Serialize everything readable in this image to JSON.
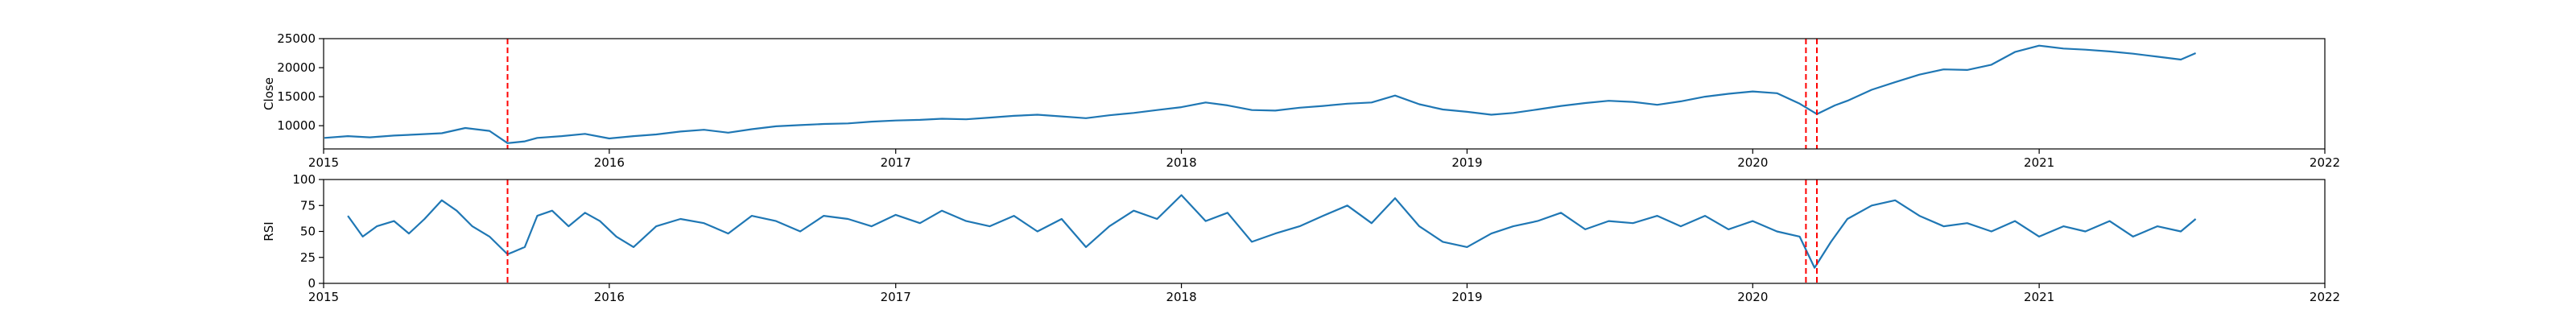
{
  "colors": {
    "series": "#1f77b4",
    "event_lines": "#ff0000",
    "frame": "#000000",
    "background": "#ffffff"
  },
  "chart_data": [
    {
      "type": "line",
      "ylabel": "Close",
      "xlim": [
        "2015-01-01",
        "2022-01-01"
      ],
      "ylim": [
        6000,
        25000
      ],
      "x_ticks": [
        "2015",
        "2016",
        "2017",
        "2018",
        "2019",
        "2020",
        "2021",
        "2022"
      ],
      "y_ticks": [
        10000,
        15000,
        20000,
        25000
      ],
      "grid": false,
      "event_lines": [
        "2015-08-24",
        "2020-03-09",
        "2020-03-23"
      ],
      "series": [
        {
          "x": [
            "2015-01-02",
            "2015-02-01",
            "2015-03-01",
            "2015-04-01",
            "2015-05-01",
            "2015-06-01",
            "2015-07-01",
            "2015-08-01",
            "2015-08-24",
            "2015-09-15",
            "2015-10-01",
            "2015-11-01",
            "2015-12-01",
            "2016-01-01",
            "2016-02-01",
            "2016-03-01",
            "2016-04-01",
            "2016-05-01",
            "2016-06-01",
            "2016-07-01",
            "2016-08-01",
            "2016-09-01",
            "2016-10-01",
            "2016-11-01",
            "2016-12-01",
            "2017-01-01",
            "2017-02-01",
            "2017-03-01",
            "2017-04-01",
            "2017-05-01",
            "2017-06-01",
            "2017-07-01",
            "2017-08-01",
            "2017-09-01",
            "2017-10-01",
            "2017-11-01",
            "2017-12-01",
            "2018-01-01",
            "2018-02-01",
            "2018-03-01",
            "2018-04-01",
            "2018-05-01",
            "2018-06-01",
            "2018-07-01",
            "2018-08-01",
            "2018-09-01",
            "2018-10-01",
            "2018-11-01",
            "2018-12-01",
            "2019-01-01",
            "2019-02-01",
            "2019-03-01",
            "2019-04-01",
            "2019-05-01",
            "2019-06-01",
            "2019-07-01",
            "2019-08-01",
            "2019-09-01",
            "2019-10-01",
            "2019-11-01",
            "2019-12-01",
            "2020-01-01",
            "2020-02-01",
            "2020-03-01",
            "2020-03-23",
            "2020-04-15",
            "2020-05-01",
            "2020-06-01",
            "2020-07-01",
            "2020-08-01",
            "2020-09-01",
            "2020-10-01",
            "2020-11-01",
            "2020-12-01",
            "2021-01-01",
            "2021-02-01",
            "2021-03-01",
            "2021-04-01",
            "2021-05-01",
            "2021-06-01",
            "2021-07-01",
            "2021-07-20"
          ],
          "y": [
            7900,
            8200,
            8000,
            8300,
            8500,
            8700,
            9600,
            9100,
            7000,
            7300,
            7900,
            8200,
            8600,
            7800,
            8200,
            8500,
            9000,
            9300,
            8800,
            9400,
            9900,
            10100,
            10300,
            10400,
            10700,
            10900,
            11000,
            11200,
            11100,
            11400,
            11700,
            11900,
            11600,
            11300,
            11800,
            12200,
            12700,
            13200,
            14000,
            13500,
            12700,
            12600,
            13100,
            13400,
            13800,
            14000,
            15200,
            13700,
            12800,
            12400,
            11900,
            12200,
            12800,
            13400,
            13900,
            14300,
            14100,
            13600,
            14200,
            15000,
            15500,
            15900,
            15600,
            13800,
            12000,
            13500,
            14300,
            16200,
            17500,
            18800,
            19700,
            19600,
            20500,
            22700,
            23800,
            23300,
            23100,
            22800,
            22400,
            21900,
            21400,
            22500
          ]
        }
      ]
    },
    {
      "type": "line",
      "ylabel": "RSI",
      "xlim": [
        "2015-01-01",
        "2022-01-01"
      ],
      "ylim": [
        0,
        100
      ],
      "x_ticks": [
        "2015",
        "2016",
        "2017",
        "2018",
        "2019",
        "2020",
        "2021",
        "2022"
      ],
      "y_ticks": [
        0,
        25,
        50,
        75,
        100
      ],
      "grid": false,
      "event_lines": [
        "2015-08-24",
        "2020-03-09",
        "2020-03-23"
      ],
      "series": [
        {
          "x": [
            "2015-02-01",
            "2015-02-20",
            "2015-03-10",
            "2015-04-01",
            "2015-04-20",
            "2015-05-10",
            "2015-06-01",
            "2015-06-20",
            "2015-07-10",
            "2015-08-01",
            "2015-08-24",
            "2015-09-15",
            "2015-10-01",
            "2015-10-20",
            "2015-11-10",
            "2015-12-01",
            "2015-12-20",
            "2016-01-10",
            "2016-02-01",
            "2016-03-01",
            "2016-04-01",
            "2016-05-01",
            "2016-06-01",
            "2016-07-01",
            "2016-08-01",
            "2016-09-01",
            "2016-10-01",
            "2016-11-01",
            "2016-12-01",
            "2017-01-01",
            "2017-02-01",
            "2017-03-01",
            "2017-04-01",
            "2017-05-01",
            "2017-06-01",
            "2017-07-01",
            "2017-08-01",
            "2017-09-01",
            "2017-10-01",
            "2017-11-01",
            "2017-12-01",
            "2018-01-01",
            "2018-02-01",
            "2018-03-01",
            "2018-04-01",
            "2018-05-01",
            "2018-06-01",
            "2018-07-01",
            "2018-08-01",
            "2018-09-01",
            "2018-10-01",
            "2018-11-01",
            "2018-12-01",
            "2019-01-01",
            "2019-02-01",
            "2019-03-01",
            "2019-04-01",
            "2019-05-01",
            "2019-06-01",
            "2019-07-01",
            "2019-08-01",
            "2019-09-01",
            "2019-10-01",
            "2019-11-01",
            "2019-12-01",
            "2020-01-01",
            "2020-02-01",
            "2020-03-01",
            "2020-03-20",
            "2020-04-10",
            "2020-05-01",
            "2020-06-01",
            "2020-07-01",
            "2020-08-01",
            "2020-09-01",
            "2020-10-01",
            "2020-11-01",
            "2020-12-01",
            "2021-01-01",
            "2021-02-01",
            "2021-03-01",
            "2021-04-01",
            "2021-05-01",
            "2021-06-01",
            "2021-07-01",
            "2021-07-20"
          ],
          "y": [
            65,
            45,
            55,
            60,
            48,
            62,
            80,
            70,
            55,
            45,
            28,
            35,
            65,
            70,
            55,
            68,
            60,
            45,
            35,
            55,
            62,
            58,
            48,
            65,
            60,
            50,
            65,
            62,
            55,
            66,
            58,
            70,
            60,
            55,
            65,
            50,
            62,
            35,
            55,
            70,
            62,
            85,
            60,
            68,
            40,
            48,
            55,
            65,
            75,
            58,
            82,
            55,
            40,
            35,
            48,
            55,
            60,
            68,
            52,
            60,
            58,
            65,
            55,
            65,
            52,
            60,
            50,
            45,
            15,
            40,
            62,
            75,
            80,
            65,
            55,
            58,
            50,
            60,
            45,
            55,
            50,
            60,
            45,
            55,
            50,
            62
          ]
        }
      ]
    }
  ]
}
